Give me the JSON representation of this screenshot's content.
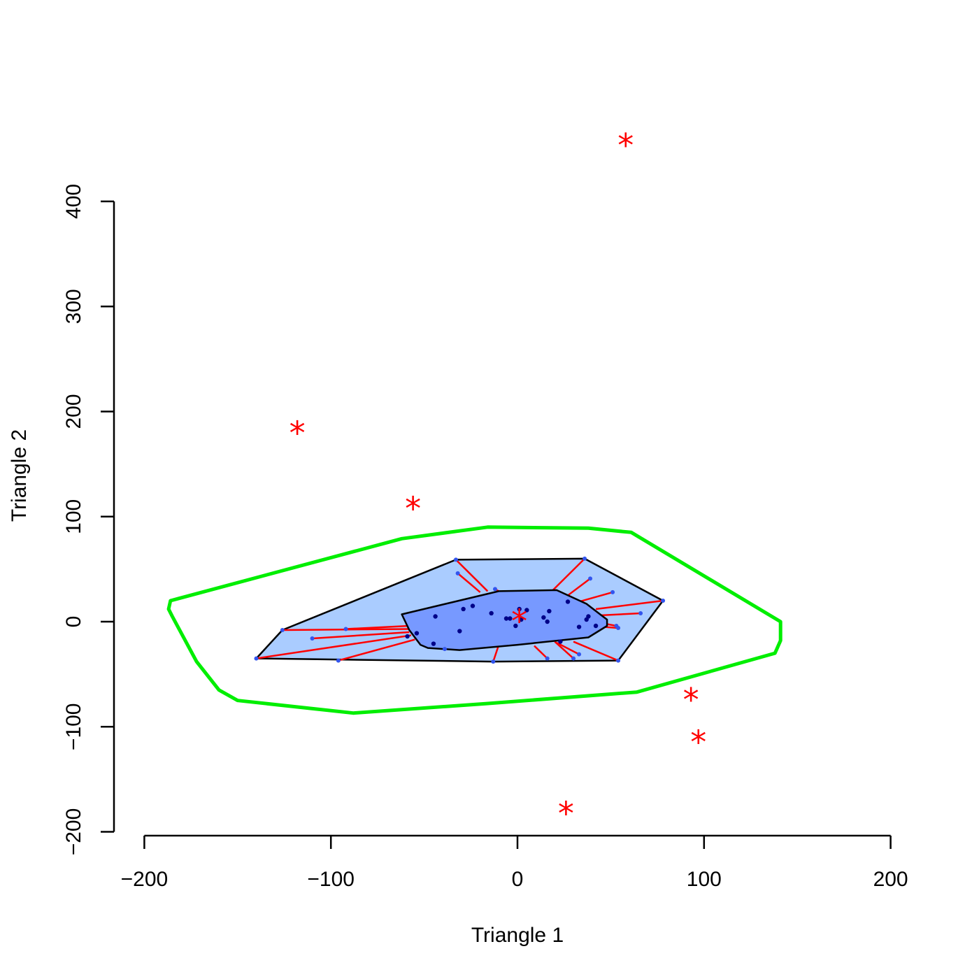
{
  "chart_data": {
    "type": "scatter",
    "subtype": "bagplot",
    "xlabel": "Triangle 1",
    "ylabel": "Triangle 2",
    "xlim": [
      -200,
      200
    ],
    "ylim": [
      -200,
      400
    ],
    "x_ticks": [
      -200,
      -100,
      0,
      100,
      200
    ],
    "y_ticks": [
      -200,
      -100,
      0,
      100,
      200,
      300,
      400
    ],
    "x_tick_labels": [
      "−200",
      "−100",
      "0",
      "100",
      "200"
    ],
    "y_tick_labels": [
      "−200",
      "−100",
      "0",
      "100",
      "200",
      "300",
      "400"
    ],
    "grid": false,
    "colors": {
      "fence": "#00ee00",
      "loop_fill": "#aaccff",
      "bag_fill": "#7799ff",
      "whisker": "#ff0000",
      "outlier": "#ff0000",
      "median": "#ff0000",
      "bag_point": "#000088",
      "loop_point": "#3355ee"
    },
    "fence": [
      [
        -186,
        20
      ],
      [
        -187,
        12
      ],
      [
        -185,
        5
      ],
      [
        -172,
        -38
      ],
      [
        -160,
        -65
      ],
      [
        -150,
        -75
      ],
      [
        -88,
        -87
      ],
      [
        -17,
        -78
      ],
      [
        64,
        -67
      ],
      [
        138,
        -30
      ],
      [
        141,
        -18
      ],
      [
        141,
        -6
      ],
      [
        141,
        0
      ],
      [
        61,
        85
      ],
      [
        38,
        89
      ],
      [
        -16,
        90
      ],
      [
        -62,
        79
      ]
    ],
    "loop": [
      [
        -33,
        59
      ],
      [
        36,
        60
      ],
      [
        78,
        20
      ],
      [
        54,
        -37
      ],
      [
        -13,
        -38
      ],
      [
        -140,
        -35
      ],
      [
        -126,
        -8
      ]
    ],
    "bag": [
      [
        -62,
        7
      ],
      [
        -10,
        29
      ],
      [
        21,
        30
      ],
      [
        37,
        17
      ],
      [
        45,
        6
      ],
      [
        48,
        2
      ],
      [
        48,
        -4
      ],
      [
        38,
        -15
      ],
      [
        0,
        -22
      ],
      [
        -31,
        -27
      ],
      [
        -48,
        -25
      ],
      [
        -52,
        -22
      ],
      [
        -58,
        -8
      ],
      [
        -62,
        7
      ]
    ],
    "median": [
      1,
      3
    ],
    "bag_points": [
      [
        -44,
        5
      ],
      [
        -29,
        12
      ],
      [
        -24,
        15
      ],
      [
        -14,
        8
      ],
      [
        -6,
        3
      ],
      [
        -4,
        3
      ],
      [
        1,
        12
      ],
      [
        5,
        11
      ],
      [
        2,
        2
      ],
      [
        -1,
        -4
      ],
      [
        14,
        4
      ],
      [
        16,
        0
      ],
      [
        17,
        10
      ],
      [
        27,
        19
      ],
      [
        33,
        -5
      ],
      [
        37,
        2
      ],
      [
        38,
        5
      ],
      [
        42,
        -4
      ],
      [
        -31,
        -9
      ],
      [
        -54,
        -11
      ],
      [
        -59,
        -14
      ],
      [
        -45,
        -21
      ],
      [
        23,
        -19
      ]
    ],
    "loop_points": [
      [
        -33,
        59
      ],
      [
        -32,
        46
      ],
      [
        -12,
        31
      ],
      [
        36,
        60
      ],
      [
        39,
        41
      ],
      [
        51,
        28
      ],
      [
        78,
        20
      ],
      [
        66,
        8
      ],
      [
        53,
        -4
      ],
      [
        54,
        -6
      ],
      [
        54,
        -37
      ],
      [
        33,
        -31
      ],
      [
        30,
        -35
      ],
      [
        16,
        -35
      ],
      [
        -13,
        -38
      ],
      [
        -39,
        -26
      ],
      [
        -96,
        -37
      ],
      [
        -140,
        -35
      ],
      [
        -126,
        -8
      ],
      [
        -110,
        -16
      ],
      [
        -92,
        -7
      ]
    ],
    "whiskers": [
      [
        [
          -33,
          59
        ],
        [
          -16,
          29
        ]
      ],
      [
        [
          -32,
          46
        ],
        [
          -20,
          28
        ]
      ],
      [
        [
          -12,
          31
        ],
        [
          -8,
          27
        ]
      ],
      [
        [
          36,
          60
        ],
        [
          19,
          30
        ]
      ],
      [
        [
          39,
          41
        ],
        [
          27,
          25
        ]
      ],
      [
        [
          51,
          28
        ],
        [
          33,
          19
        ]
      ],
      [
        [
          78,
          20
        ],
        [
          42,
          12
        ]
      ],
      [
        [
          66,
          8
        ],
        [
          44,
          6
        ]
      ],
      [
        [
          53,
          -4
        ],
        [
          47,
          -2
        ]
      ],
      [
        [
          54,
          -6
        ],
        [
          46,
          -5
        ]
      ],
      [
        [
          54,
          -37
        ],
        [
          30,
          -19
        ]
      ],
      [
        [
          33,
          -31
        ],
        [
          21,
          -20
        ]
      ],
      [
        [
          30,
          -35
        ],
        [
          20,
          -19
        ]
      ],
      [
        [
          16,
          -35
        ],
        [
          9,
          -23
        ]
      ],
      [
        [
          -13,
          -38
        ],
        [
          -10,
          -22
        ]
      ],
      [
        [
          -39,
          -26
        ],
        [
          -33,
          -24
        ]
      ],
      [
        [
          -96,
          -37
        ],
        [
          -55,
          -17
        ]
      ],
      [
        [
          -140,
          -35
        ],
        [
          -57,
          -13
        ]
      ],
      [
        [
          -126,
          -8
        ],
        [
          -58,
          -7
        ]
      ],
      [
        [
          -110,
          -16
        ],
        [
          -58,
          -10
        ]
      ],
      [
        [
          -92,
          -7
        ],
        [
          -58,
          -4
        ]
      ]
    ],
    "outliers": [
      [
        58,
        456
      ],
      [
        -118,
        182
      ],
      [
        -56,
        110
      ],
      [
        93,
        -72
      ],
      [
        97,
        -112
      ],
      [
        26,
        -180
      ]
    ]
  }
}
